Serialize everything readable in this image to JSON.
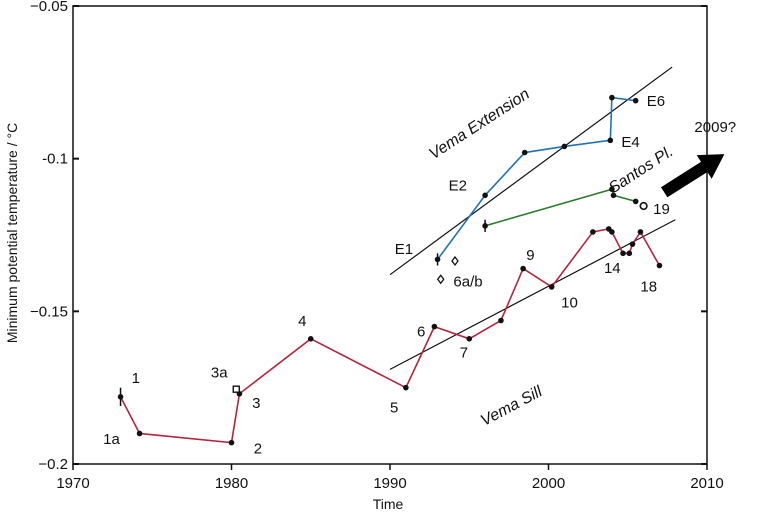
{
  "chart_data": {
    "type": "line",
    "xlabel": "Time",
    "ylabel": "Minimum potential temperature  / °C",
    "xlim": [
      1970,
      2010
    ],
    "ylim": [
      -0.2,
      -0.05
    ],
    "x_ticks": [
      "1970",
      "1980",
      "1990",
      "2000",
      "2010"
    ],
    "y_ticks": [
      "−0.05",
      "-0.1",
      "−0.15",
      "−0.2"
    ],
    "grid": false,
    "series": [
      {
        "name": "Vema Sill",
        "color": "#b5263a",
        "x": [
          1973.0,
          1974.2,
          1980.0,
          1980.5,
          1985.0,
          1991.0,
          1992.8,
          1995.0,
          1997.0,
          1998.4,
          2000.2,
          2002.8,
          2003.8,
          2004.0,
          2004.7,
          2005.1,
          2005.3,
          2005.8,
          2007.0
        ],
        "values": [
          -0.178,
          -0.19,
          -0.193,
          -0.177,
          -0.159,
          -0.175,
          -0.155,
          -0.159,
          -0.153,
          -0.136,
          -0.142,
          -0.124,
          -0.123,
          -0.124,
          -0.131,
          -0.131,
          -0.128,
          -0.124,
          -0.135
        ]
      },
      {
        "name": "Vema Extension",
        "color": "#2272b4",
        "x": [
          1993.0,
          1996.0,
          1998.5,
          2001.0,
          2003.9,
          2004.0,
          2005.5
        ],
        "values": [
          -0.133,
          -0.112,
          -0.098,
          -0.096,
          -0.094,
          -0.08,
          -0.081
        ]
      },
      {
        "name": "Santos Pl.",
        "color": "#2d7a2d",
        "x": [
          1996.0,
          2004.0,
          2004.1,
          2005.5
        ],
        "values": [
          -0.122,
          -0.11,
          -0.112,
          -0.114
        ]
      }
    ],
    "trend_lines": [
      {
        "x": [
          1990,
          2007.8
        ],
        "values": [
          -0.138,
          -0.07
        ]
      },
      {
        "x": [
          1990,
          2008.0
        ],
        "values": [
          -0.169,
          -0.12
        ]
      }
    ],
    "error_bars": [
      {
        "x": 1973.0,
        "y": -0.178,
        "low": -0.181,
        "high": -0.175
      },
      {
        "x": 1993.0,
        "y": -0.133,
        "low": -0.135,
        "high": -0.131
      },
      {
        "x": 1996.0,
        "y": -0.122,
        "low": -0.124,
        "high": -0.12
      }
    ],
    "open_markers": [
      {
        "shape": "square",
        "x": 1980.3,
        "y": -0.1755
      },
      {
        "shape": "diamond",
        "x": 1993.2,
        "y": -0.1395
      },
      {
        "shape": "diamond",
        "x": 1994.1,
        "y": -0.1335
      },
      {
        "shape": "circle",
        "x": 2006.0,
        "y": -0.1155
      }
    ],
    "point_labels": [
      {
        "text": "1",
        "x": 1973.7,
        "y": -0.1735
      },
      {
        "text": "1a",
        "x": 1971.9,
        "y": -0.1935
      },
      {
        "text": "2",
        "x": 1981.4,
        "y": -0.1965
      },
      {
        "text": "3a",
        "x": 1978.7,
        "y": -0.1717
      },
      {
        "text": "3",
        "x": 1981.3,
        "y": -0.1817
      },
      {
        "text": "4",
        "x": 1984.2,
        "y": -0.1548
      },
      {
        "text": "5",
        "x": 1990.0,
        "y": -0.1832
      },
      {
        "text": "6",
        "x": 1991.7,
        "y": -0.1582
      },
      {
        "text": "7",
        "x": 1994.4,
        "y": -0.1652
      },
      {
        "text": "9",
        "x": 1998.6,
        "y": -0.1332
      },
      {
        "text": "10",
        "x": 2000.8,
        "y": -0.1488
      },
      {
        "text": "14",
        "x": 2003.5,
        "y": -0.1375
      },
      {
        "text": "18",
        "x": 2005.8,
        "y": -0.1435
      },
      {
        "text": "19",
        "x": 2006.6,
        "y": -0.1182
      },
      {
        "text": "6a/b",
        "x": 1994.0,
        "y": -0.1418
      },
      {
        "text": "E1",
        "x": 1990.3,
        "y": -0.1312
      },
      {
        "text": "E2",
        "x": 1993.7,
        "y": -0.1105
      },
      {
        "text": "E4",
        "x": 2004.6,
        "y": -0.0962
      },
      {
        "text": "E6",
        "x": 2006.2,
        "y": -0.0828
      }
    ],
    "region_labels": [
      {
        "text": "Vema Extension",
        "x": 1995.8,
        "y": -0.09,
        "angle": -33
      },
      {
        "text": "Santos Pl.",
        "x": 2006.0,
        "y": -0.105,
        "angle": -33
      },
      {
        "text": "Vema Sill",
        "x": 1997.8,
        "y": -0.1825,
        "angle": -28
      }
    ],
    "arrow_label": "2009?",
    "arrow": {
      "from": [
        2007.3,
        -0.111
      ],
      "to": [
        2011.1,
        -0.0985
      ]
    }
  }
}
